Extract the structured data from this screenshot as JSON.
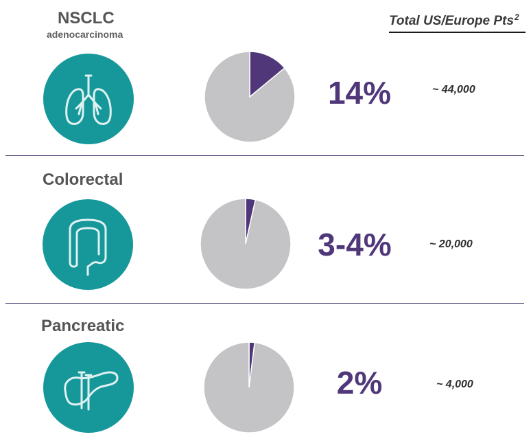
{
  "header": {
    "text": "Total US/Europe Pts",
    "sup": "2"
  },
  "colors": {
    "teal": "#16989b",
    "purple": "#4f3779",
    "gray": "#c4c4c6",
    "icon_light": "#dff1f0",
    "divider": "#5b4a7a"
  },
  "rows": [
    {
      "title": "NSCLC",
      "subtitle": "adenocarcinoma",
      "icon": "lungs-icon",
      "percent_label": "14%",
      "patients": "~ 44,000"
    },
    {
      "title": "Colorectal",
      "icon": "colon-icon",
      "percent_label": "3-4%",
      "patients": "~ 20,000"
    },
    {
      "title": "Pancreatic",
      "icon": "pancreas-icon",
      "percent_label": "2%",
      "patients": "~ 4,000"
    }
  ],
  "chart_data": [
    {
      "type": "pie",
      "title": "NSCLC",
      "slices": [
        {
          "label": "14%",
          "value": 14
        },
        {
          "value": 86
        }
      ]
    },
    {
      "type": "pie",
      "title": "Colorectal",
      "slices": [
        {
          "label": "3-4%",
          "value": 3.5
        },
        {
          "value": 96.5
        }
      ]
    },
    {
      "type": "pie",
      "title": "Pancreatic",
      "slices": [
        {
          "label": "2%",
          "value": 2
        },
        {
          "value": 98
        }
      ]
    }
  ]
}
